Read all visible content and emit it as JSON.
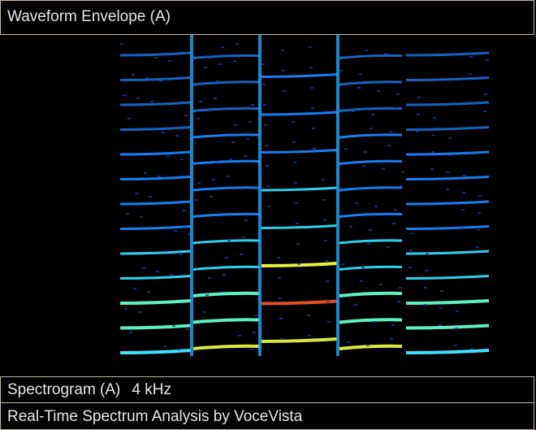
{
  "waveform": {
    "title": "Waveform Envelope (A)"
  },
  "spectrogram": {
    "title": "Spectrogram (A)",
    "range": "4 kHz"
  },
  "footer": {
    "text": "Real-Time Spectrum Analysis by VoceVista"
  }
}
